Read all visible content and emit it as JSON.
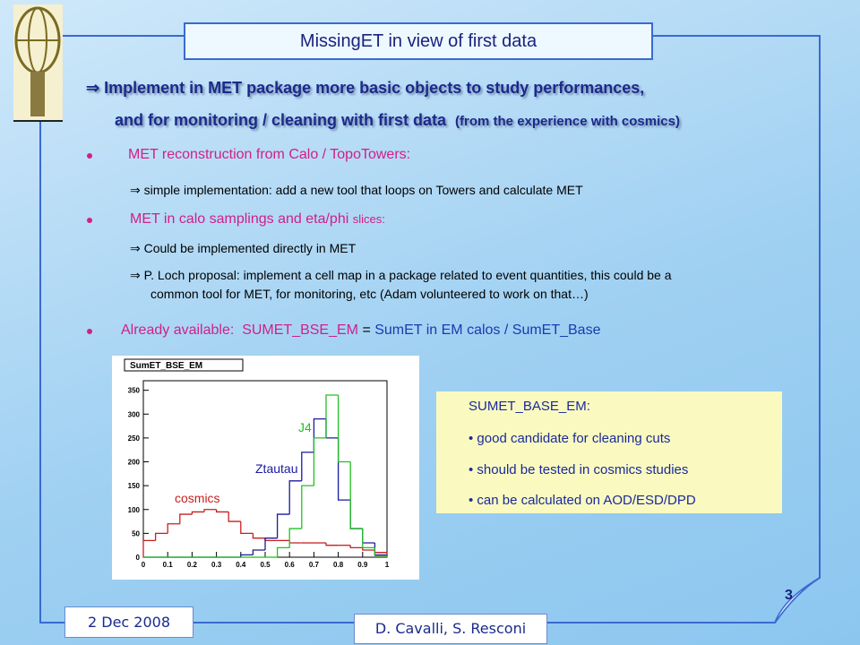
{
  "title": "MissingET in view of first data",
  "intro": {
    "line1": "⇒ Implement in MET package more basic objects to study performances,",
    "line2": "and for monitoring / cleaning with first data",
    "line2_note": "(from the experience with cosmics)"
  },
  "items": [
    {
      "heading": "MET reconstruction from Calo / TopoTowers:",
      "points": [
        "⇒ simple implementation: add a new tool that loops on Towers and calculate MET"
      ]
    },
    {
      "heading": "MET in calo samplings and eta/phi",
      "heading_note": "slices:",
      "points": [
        "⇒  Could be implemented directly in MET",
        "⇒  P. Loch proposal: implement a cell map in a package related to event quantities, this could be a",
        "common tool for MET,  for monitoring, etc (Adam volunteered to work on that…)"
      ]
    },
    {
      "parts": [
        "Already available:  SUMET_BSE_EM",
        " = ",
        "SumET in EM calos / SumET_Base"
      ]
    }
  ],
  "note": {
    "title": "SUMET_BASE_EM:",
    "points": [
      "• good candidate for cleaning cuts",
      "• should be tested in cosmics studies",
      "• can be calculated on AOD/ESD/DPD"
    ]
  },
  "footer": {
    "date": "2 Dec 2008",
    "authors": "D. Cavalli, S. Resconi",
    "page": "3"
  },
  "chart_data": {
    "type": "histogram",
    "title": "SumET_BSE_EM",
    "bins": [
      0,
      0.05,
      0.1,
      0.15,
      0.2,
      0.25,
      0.3,
      0.35,
      0.4,
      0.45,
      0.5,
      0.55,
      0.6,
      0.65,
      0.7,
      0.75,
      0.8,
      0.85,
      0.9,
      0.95,
      1
    ],
    "series": [
      {
        "name": "cosmics",
        "color": "#c81e1e",
        "values": [
          35,
          50,
          70,
          90,
          95,
          100,
          95,
          75,
          50,
          40,
          35,
          35,
          30,
          30,
          30,
          25,
          25,
          20,
          15,
          10
        ]
      },
      {
        "name": "Ztautau",
        "color": "#1a1aa0",
        "values": [
          0,
          0,
          0,
          0,
          0,
          0,
          0,
          0,
          5,
          15,
          40,
          90,
          160,
          220,
          290,
          250,
          120,
          60,
          30,
          5
        ]
      },
      {
        "name": "J4",
        "color": "#22c022",
        "values": [
          0,
          0,
          0,
          0,
          0,
          0,
          0,
          0,
          0,
          0,
          0,
          20,
          60,
          150,
          250,
          340,
          200,
          60,
          20,
          3
        ]
      }
    ],
    "xlim": [
      0,
      1
    ],
    "ylim": [
      0,
      370
    ],
    "xticks": [
      0,
      0.1,
      0.2,
      0.3,
      0.4,
      0.5,
      0.6,
      0.7,
      0.8,
      0.9,
      1
    ],
    "yticks": [
      0,
      50,
      100,
      150,
      200,
      250,
      300,
      350
    ]
  }
}
